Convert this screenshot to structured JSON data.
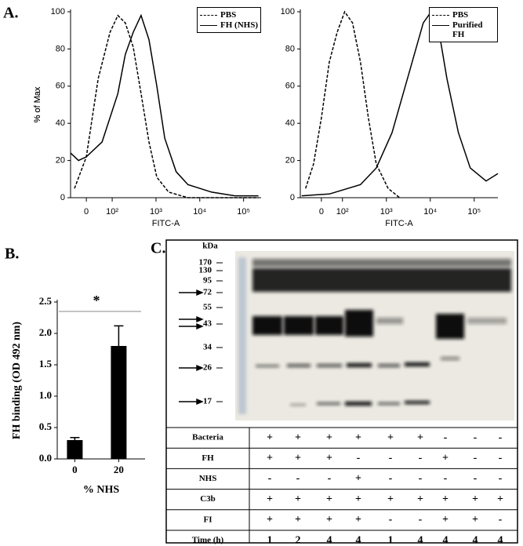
{
  "panel_labels": [
    "A.",
    "B.",
    "C."
  ],
  "chart_data": [
    {
      "type": "line",
      "ylabel": "% of Max",
      "xlabel": "FITC-A",
      "ylim": [
        0,
        100
      ],
      "yticks": [
        0,
        20,
        40,
        60,
        80,
        100
      ],
      "xlim": [
        1.05,
        5.4
      ],
      "xticks": [
        {
          "value": 1.41,
          "label": "0"
        },
        {
          "value": 2,
          "label": "10²"
        },
        {
          "value": 3,
          "label": "10³"
        },
        {
          "value": 4,
          "label": "10⁴"
        },
        {
          "value": 5,
          "label": "10⁵"
        }
      ],
      "legend": "upper right",
      "series": [
        {
          "name": "PBS",
          "color": "#000000",
          "line_style": "dashed",
          "x": [
            1.14,
            1.41,
            1.68,
            1.95,
            2.13,
            2.3,
            2.48,
            2.66,
            2.84,
            3.02,
            3.29,
            3.73,
            5.34
          ],
          "values": [
            5,
            22,
            64,
            89,
            98,
            94,
            81,
            56,
            30,
            11,
            3,
            0,
            0
          ]
        },
        {
          "name": "FH (NHS)",
          "color": "#000000",
          "line_style": "solid",
          "x": [
            1.05,
            1.23,
            1.41,
            1.77,
            2.13,
            2.3,
            2.48,
            2.66,
            2.84,
            3.02,
            3.2,
            3.46,
            3.73,
            4.27,
            4.8,
            5.34
          ],
          "values": [
            24,
            20,
            22,
            30,
            56,
            77,
            89,
            98,
            85,
            60,
            32,
            14,
            7,
            3,
            1,
            1
          ]
        }
      ]
    },
    {
      "type": "line",
      "ylabel": "% of Max",
      "xlabel": "FITC-A",
      "ylim": [
        0,
        100
      ],
      "yticks": [
        0,
        20,
        40,
        60,
        80,
        100
      ],
      "xlim": [
        1.04,
        5.54
      ],
      "xticks": [
        {
          "value": 1.52,
          "label": "0"
        },
        {
          "value": 2,
          "label": "10²"
        },
        {
          "value": 3,
          "label": "10³"
        },
        {
          "value": 4,
          "label": "10⁴"
        },
        {
          "value": 5,
          "label": "10⁵"
        }
      ],
      "legend": "upper right",
      "series": [
        {
          "name": "PBS",
          "color": "#000000",
          "line_style": "dashed",
          "x": [
            1.16,
            1.34,
            1.52,
            1.7,
            1.88,
            2.05,
            2.23,
            2.41,
            2.59,
            2.77,
            3.04,
            3.3
          ],
          "values": [
            5,
            18,
            43,
            73,
            89,
            100,
            94,
            73,
            43,
            18,
            5,
            0
          ]
        },
        {
          "name": "Purified FH",
          "color": "#000000",
          "line_style": "solid",
          "x": [
            1.07,
            1.7,
            2.41,
            2.77,
            3.13,
            3.48,
            3.84,
            4.02,
            4.2,
            4.38,
            4.64,
            4.91,
            5.27,
            5.54
          ],
          "values": [
            1,
            2,
            7,
            16,
            35,
            64,
            94,
            100,
            89,
            64,
            35,
            16,
            9,
            13
          ]
        }
      ]
    },
    {
      "type": "bar",
      "ylabel": "FH binding (OD 492 nm)",
      "xlabel": "% NHS",
      "categories": [
        "0",
        "20"
      ],
      "values": [
        0.3,
        1.8
      ],
      "errors": [
        0.04,
        0.32
      ],
      "color": "#000000",
      "ylim": [
        0,
        2.5
      ],
      "yticks": [
        {
          "value": 0,
          "label": "0.0"
        },
        0.5,
        {
          "value": 1,
          "label": "1.0"
        },
        1.5,
        {
          "value": 2,
          "label": "2.0"
        },
        2.5
      ],
      "annotations": [
        "*"
      ]
    }
  ],
  "gel": {
    "unit": "kDa",
    "markers": [
      "170",
      "130",
      "95",
      "72",
      "55",
      "43",
      "34",
      "26",
      "17"
    ]
  },
  "table": {
    "rows": [
      {
        "label": "Bacteria",
        "cells": [
          "+",
          "+",
          "+",
          "+",
          "+",
          "+",
          "-",
          "-",
          "-"
        ]
      },
      {
        "label": "FH",
        "cells": [
          "+",
          "+",
          "+",
          "-",
          "-",
          "-",
          "+",
          "-",
          "-"
        ]
      },
      {
        "label": "NHS",
        "cells": [
          "-",
          "-",
          "-",
          "+",
          "-",
          "-",
          "-",
          "-",
          "-"
        ]
      },
      {
        "label": "C3b",
        "cells": [
          "+",
          "+",
          "+",
          "+",
          "+",
          "+",
          "+",
          "+",
          "+"
        ]
      },
      {
        "label": "FI",
        "cells": [
          "+",
          "+",
          "+",
          "+",
          "-",
          "-",
          "+",
          "+",
          "-"
        ]
      },
      {
        "label": "Time (h)",
        "cells": [
          "1",
          "2",
          "4",
          "4",
          "1",
          "4",
          "4",
          "4",
          "4"
        ]
      }
    ]
  }
}
